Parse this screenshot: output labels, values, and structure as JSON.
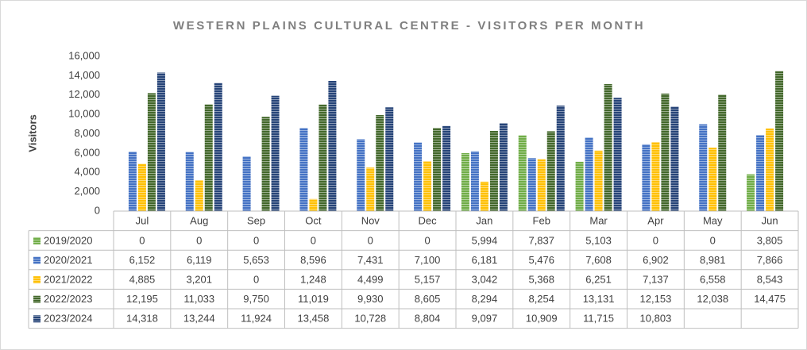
{
  "chart_data": {
    "type": "bar",
    "title": "WESTERN PLAINS CULTURAL CENTRE - VISITORS PER MONTH",
    "y_axis_label": "Visitors",
    "categories": [
      "Jul",
      "Aug",
      "Sep",
      "Oct",
      "Nov",
      "Dec",
      "Jan",
      "Feb",
      "Mar",
      "Apr",
      "May",
      "Jun"
    ],
    "series": [
      {
        "name": "2019/2020",
        "color": "#70ad47",
        "values": [
          0,
          0,
          0,
          0,
          0,
          0,
          5994,
          7837,
          5103,
          0,
          0,
          3805
        ],
        "value_labels": [
          "0",
          "0",
          "0",
          "0",
          "0",
          "0",
          "5,994",
          "7,837",
          "5,103",
          "0",
          "0",
          "3,805"
        ]
      },
      {
        "name": "2020/2021",
        "color": "#4472c4",
        "values": [
          6152,
          6119,
          5653,
          8596,
          7431,
          7100,
          6181,
          5476,
          7608,
          6902,
          8981,
          7866
        ],
        "value_labels": [
          "6,152",
          "6,119",
          "5,653",
          "8,596",
          "7,431",
          "7,100",
          "6,181",
          "5,476",
          "7,608",
          "6,902",
          "8,981",
          "7,866"
        ]
      },
      {
        "name": "2021/2022",
        "color": "#ffc000",
        "values": [
          4885,
          3201,
          0,
          1248,
          4499,
          5157,
          3042,
          5368,
          6251,
          7137,
          6558,
          8543
        ],
        "value_labels": [
          "4,885",
          "3,201",
          "0",
          "1,248",
          "4,499",
          "5,157",
          "3,042",
          "5,368",
          "6,251",
          "7,137",
          "6,558",
          "8,543"
        ]
      },
      {
        "name": "2022/2023",
        "color": "#43682b",
        "values": [
          12195,
          11033,
          9750,
          11019,
          9930,
          8605,
          8294,
          8254,
          13131,
          12153,
          12038,
          14475
        ],
        "value_labels": [
          "12,195",
          "11,033",
          "9,750",
          "11,019",
          "9,930",
          "8,605",
          "8,294",
          "8,254",
          "13,131",
          "12,153",
          "12,038",
          "14,475"
        ]
      },
      {
        "name": "2023/2024",
        "color": "#264478",
        "values": [
          14318,
          13244,
          11924,
          13458,
          10728,
          8804,
          9097,
          10909,
          11715,
          10803,
          null,
          null
        ],
        "value_labels": [
          "14,318",
          "13,244",
          "11,924",
          "13,458",
          "10,728",
          "8,804",
          "9,097",
          "10,909",
          "11,715",
          "10,803",
          null,
          null
        ]
      }
    ],
    "ylim": [
      0,
      16000
    ],
    "yticks": [
      0,
      {
        "value": 2000,
        "label": "2,000"
      },
      {
        "value": 4000,
        "label": "4,000"
      },
      {
        "value": 6000,
        "label": "6,000"
      },
      {
        "value": 8000,
        "label": "8,000"
      },
      {
        "value": 10000,
        "label": "10,000"
      },
      {
        "value": 12000,
        "label": "12,000"
      },
      {
        "value": 14000,
        "label": "14,000"
      },
      {
        "value": 16000,
        "label": "16,000"
      }
    ],
    "grid": false,
    "data_table": true
  }
}
